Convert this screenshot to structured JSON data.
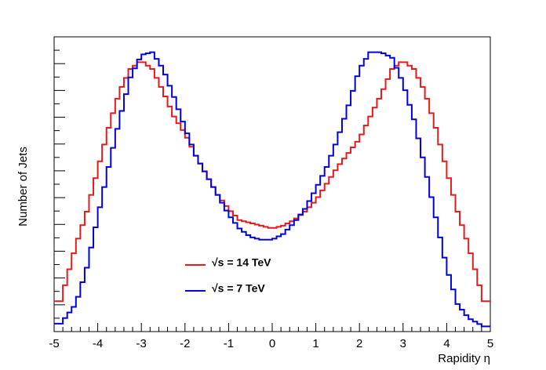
{
  "chart_data": {
    "type": "line",
    "xlabel": "Rapidity  η",
    "ylabel": "Number of Jets",
    "xlim": [
      -5,
      5
    ],
    "ylim": [
      0,
      1
    ],
    "y_tick_labels": "none",
    "grid": false,
    "legend_position": "center-bottom",
    "x_ticks": [
      -5,
      -4,
      -3,
      -2,
      -1,
      0,
      1,
      2,
      3,
      4,
      5
    ],
    "x_tick_labels": [
      "-5",
      "-4",
      "-3",
      "-2",
      "-1",
      "0",
      "1",
      "2",
      "3",
      "4",
      "5"
    ],
    "x": [
      -4.85,
      -4.5,
      -4.25,
      -4.0,
      -3.75,
      -3.5,
      -3.25,
      -3.0,
      -2.75,
      -2.5,
      -2.25,
      -2.0,
      -1.75,
      -1.5,
      -1.25,
      -1.0,
      -0.75,
      -0.5,
      -0.25,
      0.0,
      0.25,
      0.5,
      0.75,
      1.0,
      1.25,
      1.5,
      1.75,
      2.0,
      2.25,
      2.5,
      2.75,
      3.0,
      3.25,
      3.5,
      3.75,
      4.0,
      4.25,
      4.5,
      4.85
    ],
    "series": [
      {
        "name": "√s = 14 TeV",
        "color": "#e41a1c",
        "values": [
          0.1,
          0.3,
          0.42,
          0.57,
          0.72,
          0.85,
          0.93,
          0.96,
          0.93,
          0.85,
          0.76,
          0.7,
          0.62,
          0.55,
          0.48,
          0.43,
          0.39,
          0.38,
          0.37,
          0.36,
          0.37,
          0.39,
          0.42,
          0.46,
          0.52,
          0.58,
          0.63,
          0.68,
          0.76,
          0.84,
          0.93,
          0.96,
          0.93,
          0.85,
          0.72,
          0.57,
          0.42,
          0.3,
          0.1
        ]
      },
      {
        "name": "√s = 7 TeV",
        "color": "#0000e0",
        "values": [
          0.02,
          0.09,
          0.22,
          0.4,
          0.58,
          0.75,
          0.9,
          0.98,
          0.99,
          0.93,
          0.83,
          0.72,
          0.62,
          0.55,
          0.48,
          0.41,
          0.36,
          0.33,
          0.32,
          0.32,
          0.34,
          0.38,
          0.43,
          0.5,
          0.58,
          0.68,
          0.8,
          0.93,
          0.99,
          0.99,
          0.97,
          0.88,
          0.75,
          0.58,
          0.4,
          0.22,
          0.09,
          0.04,
          0.01
        ]
      }
    ]
  }
}
